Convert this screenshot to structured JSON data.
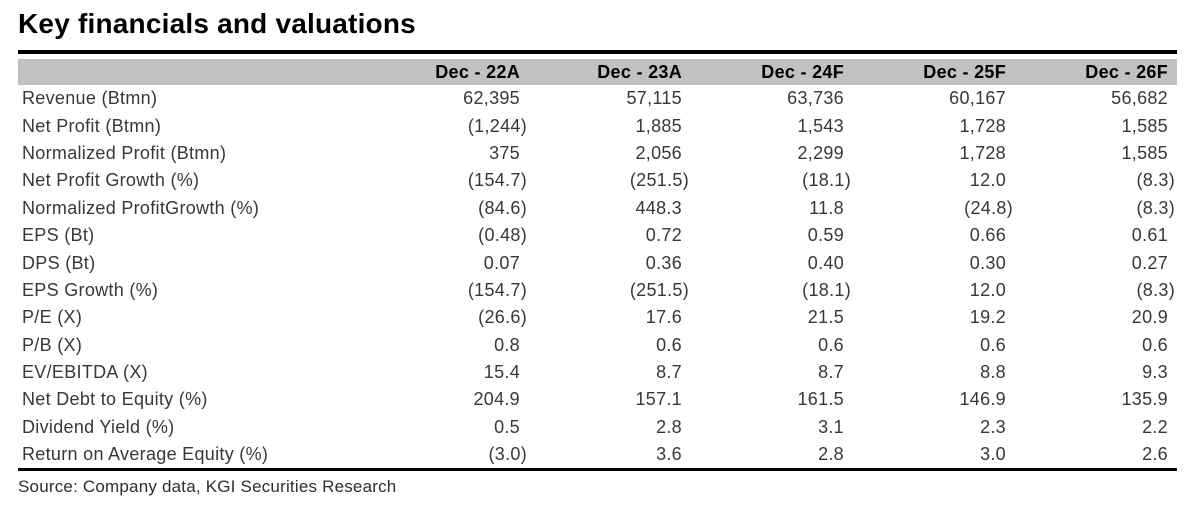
{
  "title": "Key financials and valuations",
  "source": "Source: Company data, KGI Securities Research",
  "table": {
    "columns": [
      "Dec - 22A",
      "Dec - 23A",
      "Dec - 24F",
      "Dec - 25F",
      "Dec - 26F"
    ],
    "rows": [
      {
        "label": "Revenue (Btmn)",
        "values": [
          "62,395",
          "57,115",
          "63,736",
          "60,167",
          "56,682"
        ]
      },
      {
        "label": "Net Profit (Btmn)",
        "values": [
          "(1,244)",
          "1,885",
          "1,543",
          "1,728",
          "1,585"
        ]
      },
      {
        "label": "Normalized Profit (Btmn)",
        "values": [
          "375",
          "2,056",
          "2,299",
          "1,728",
          "1,585"
        ]
      },
      {
        "label": "Net Profit Growth (%)",
        "values": [
          "(154.7)",
          "(251.5)",
          "(18.1)",
          "12.0",
          "(8.3)"
        ]
      },
      {
        "label": "Normalized ProfitGrowth (%)",
        "values": [
          "(84.6)",
          "448.3",
          "11.8",
          "(24.8)",
          "(8.3)"
        ]
      },
      {
        "label": "EPS (Bt)",
        "values": [
          "(0.48)",
          "0.72",
          "0.59",
          "0.66",
          "0.61"
        ]
      },
      {
        "label": "DPS (Bt)",
        "values": [
          "0.07",
          "0.36",
          "0.40",
          "0.30",
          "0.27"
        ]
      },
      {
        "label": "EPS Growth (%)",
        "values": [
          "(154.7)",
          "(251.5)",
          "(18.1)",
          "12.0",
          "(8.3)"
        ]
      },
      {
        "label": "P/E (X)",
        "values": [
          "(26.6)",
          "17.6",
          "21.5",
          "19.2",
          "20.9"
        ]
      },
      {
        "label": "P/B (X)",
        "values": [
          "0.8",
          "0.6",
          "0.6",
          "0.6",
          "0.6"
        ]
      },
      {
        "label": "EV/EBITDA (X)",
        "values": [
          "15.4",
          "8.7",
          "8.7",
          "8.8",
          "9.3"
        ]
      },
      {
        "label": "Net Debt to Equity (%)",
        "values": [
          "204.9",
          "157.1",
          "161.5",
          "146.9",
          "135.9"
        ]
      },
      {
        "label": "Dividend Yield (%)",
        "values": [
          "0.5",
          "2.8",
          "3.1",
          "2.3",
          "2.2"
        ]
      },
      {
        "label": "Return on Average Equity (%)",
        "values": [
          "(3.0)",
          "3.6",
          "2.8",
          "3.0",
          "2.6"
        ]
      }
    ]
  },
  "colors": {
    "header_bg": "#c1c1c1",
    "text": "#383838",
    "title": "#000000",
    "rule": "#000000"
  }
}
